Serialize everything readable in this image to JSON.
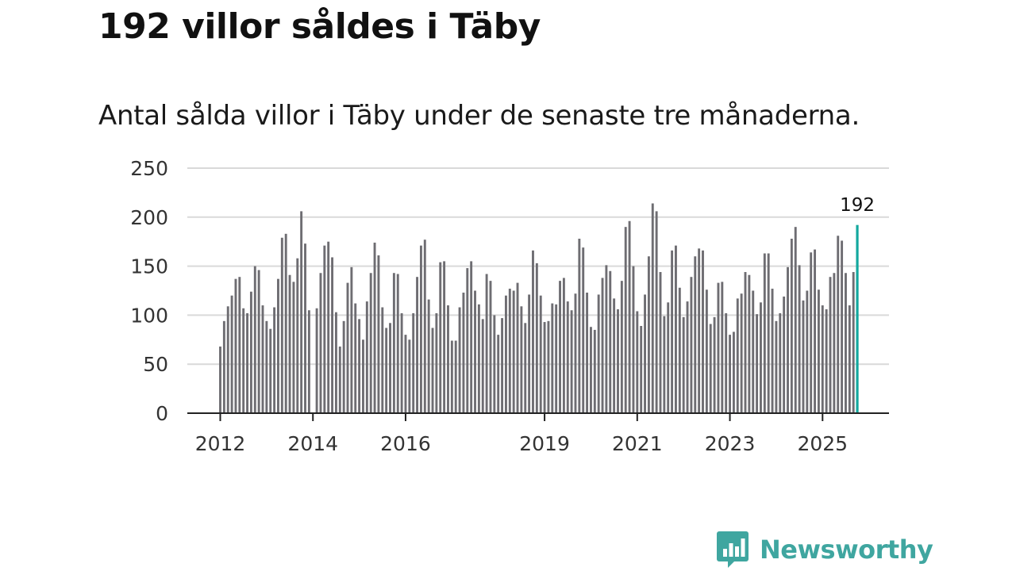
{
  "header": {
    "title": "192 villor såldes i Täby",
    "subtitle": "Antal sålda villor i Täby under de senaste tre månaderna."
  },
  "brand": {
    "name": "Newsworthy",
    "icon": "bar-chart-speech-bubble-icon",
    "color": "#3fa6a0"
  },
  "chart_data": {
    "type": "bar",
    "ylim": [
      0,
      250
    ],
    "y_ticks": [
      "0",
      "50",
      "100",
      "150",
      "200",
      "250"
    ],
    "x_ticks": [
      {
        "label": "2012",
        "index": 0
      },
      {
        "label": "2014",
        "index": 24
      },
      {
        "label": "2016",
        "index": 48
      },
      {
        "label": "2019",
        "index": 84
      },
      {
        "label": "2021",
        "index": 108
      },
      {
        "label": "2023",
        "index": 132
      },
      {
        "label": "2025",
        "index": 156
      }
    ],
    "bar_color": "#6e6d72",
    "highlight_color": "#13a89e",
    "grid": true,
    "annotation": {
      "label": "192",
      "index": 165
    },
    "values": [
      68,
      94,
      109,
      120,
      137,
      139,
      107,
      102,
      124,
      150,
      146,
      110,
      94,
      86,
      108,
      137,
      179,
      183,
      141,
      134,
      158,
      206,
      173,
      105,
      0,
      107,
      143,
      171,
      175,
      159,
      103,
      68,
      94,
      133,
      149,
      112,
      96,
      75,
      114,
      143,
      174,
      161,
      108,
      87,
      92,
      143,
      142,
      102,
      80,
      75,
      102,
      139,
      171,
      177,
      116,
      87,
      102,
      154,
      155,
      110,
      74,
      74,
      108,
      123,
      148,
      155,
      125,
      111,
      96,
      142,
      135,
      100,
      80,
      97,
      120,
      127,
      125,
      133,
      109,
      92,
      121,
      166,
      153,
      120,
      93,
      94,
      112,
      111,
      135,
      138,
      114,
      105,
      122,
      178,
      169,
      123,
      88,
      85,
      121,
      138,
      151,
      145,
      117,
      106,
      135,
      190,
      196,
      150,
      104,
      89,
      121,
      160,
      214,
      206,
      144,
      99,
      113,
      166,
      171,
      128,
      98,
      114,
      139,
      160,
      168,
      166,
      126,
      91,
      98,
      133,
      134,
      102,
      80,
      83,
      117,
      122,
      144,
      141,
      125,
      101,
      113,
      163,
      163,
      127,
      94,
      102,
      119,
      149,
      178,
      190,
      151,
      115,
      125,
      164,
      167,
      126,
      110,
      106,
      139,
      143,
      181,
      176,
      143,
      110,
      144,
      192
    ]
  }
}
